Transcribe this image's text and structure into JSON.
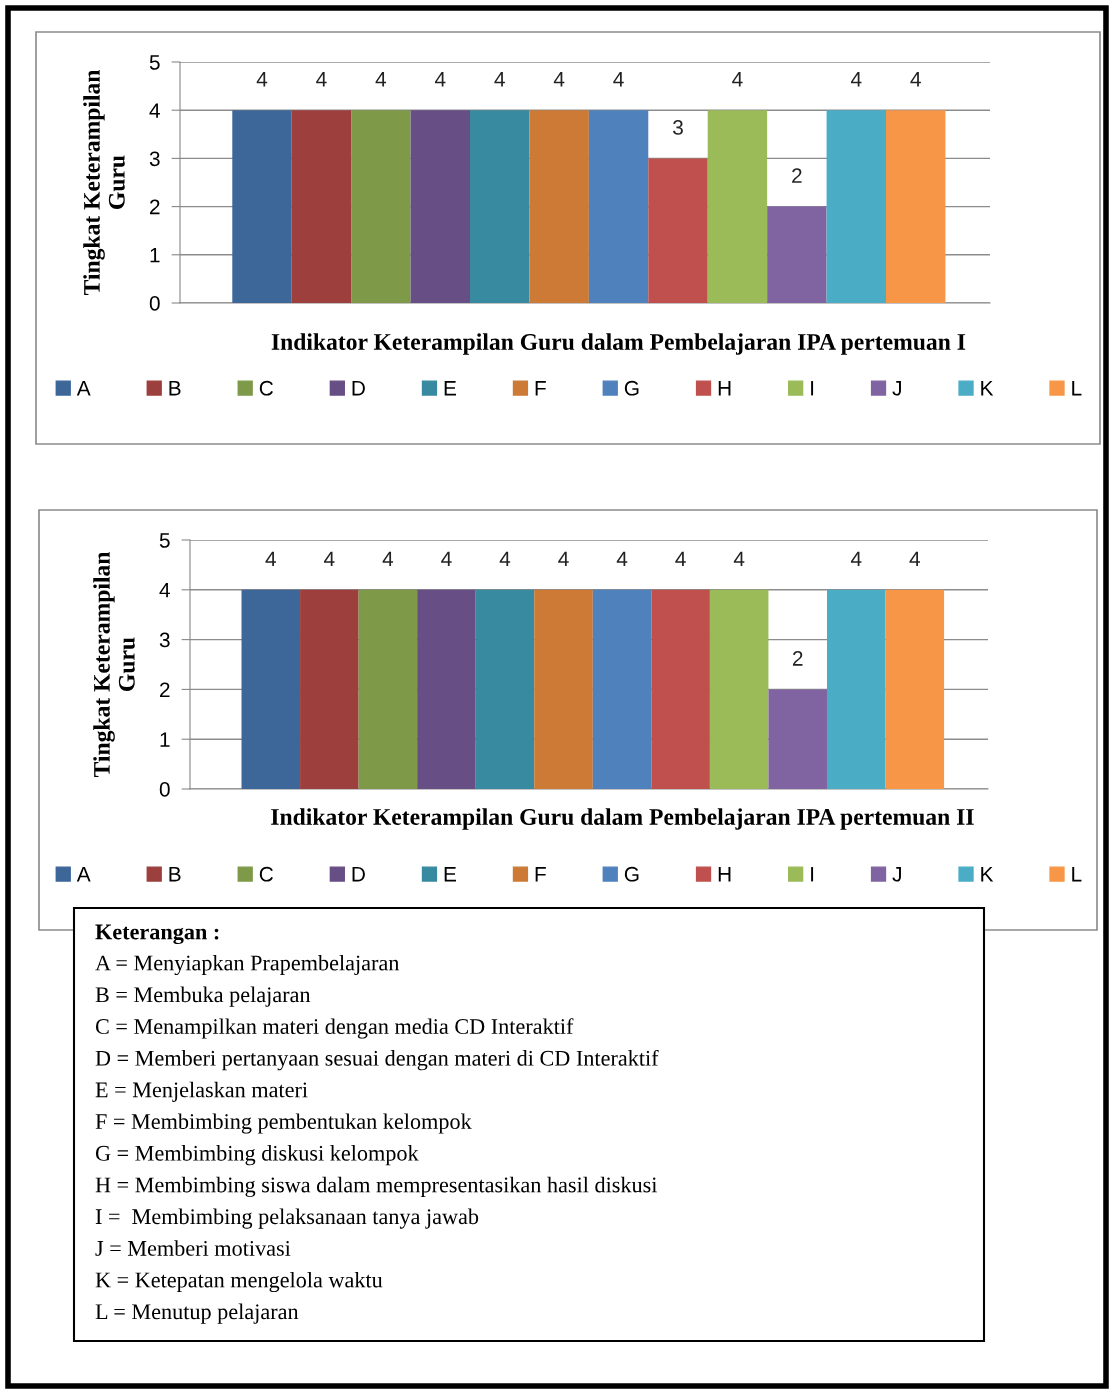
{
  "chart_data": [
    {
      "type": "bar",
      "categories": [
        null
      ],
      "xlabel": "Indikator Keterampilan Guru dalam Pembelajaran IPA pertemuan I",
      "ylabel": "Tingkat Keterampilan\nGuru",
      "ylim": [
        0,
        5
      ],
      "yticks": [
        0,
        1,
        2,
        3,
        4,
        5
      ],
      "grid": "y",
      "legend": "bottom",
      "data_labels": true,
      "series": [
        {
          "name": "A",
          "color": "#3d6699",
          "values": [
            4
          ]
        },
        {
          "name": "B",
          "color": "#9c3f3d",
          "values": [
            4
          ]
        },
        {
          "name": "C",
          "color": "#7e9a48",
          "values": [
            4
          ]
        },
        {
          "name": "D",
          "color": "#674e85",
          "values": [
            4
          ]
        },
        {
          "name": "E",
          "color": "#378a9f",
          "values": [
            4
          ]
        },
        {
          "name": "F",
          "color": "#cc7a35",
          "values": [
            4
          ]
        },
        {
          "name": "G",
          "color": "#4f81bd",
          "values": [
            4
          ]
        },
        {
          "name": "H",
          "color": "#c0504d",
          "values": [
            3
          ]
        },
        {
          "name": "I",
          "color": "#9bbb59",
          "values": [
            4
          ]
        },
        {
          "name": "J",
          "color": "#8064a2",
          "values": [
            2
          ]
        },
        {
          "name": "K",
          "color": "#4bacc6",
          "values": [
            4
          ]
        },
        {
          "name": "L",
          "color": "#f79646",
          "values": [
            4
          ]
        }
      ]
    },
    {
      "type": "bar",
      "categories": [
        null
      ],
      "xlabel": "Indikator Keterampilan Guru dalam Pembelajaran IPA pertemuan II",
      "ylabel": "Tingkat Keterampilan\nGuru",
      "ylim": [
        0,
        5
      ],
      "yticks": [
        0,
        1,
        2,
        3,
        4,
        5
      ],
      "grid": "y",
      "legend": "bottom",
      "data_labels": true,
      "series": [
        {
          "name": "A",
          "color": "#3d6699",
          "values": [
            4
          ]
        },
        {
          "name": "B",
          "color": "#9c3f3d",
          "values": [
            4
          ]
        },
        {
          "name": "C",
          "color": "#7e9a48",
          "values": [
            4
          ]
        },
        {
          "name": "D",
          "color": "#674e85",
          "values": [
            4
          ]
        },
        {
          "name": "E",
          "color": "#378a9f",
          "values": [
            4
          ]
        },
        {
          "name": "F",
          "color": "#cc7a35",
          "values": [
            4
          ]
        },
        {
          "name": "G",
          "color": "#4f81bd",
          "values": [
            4
          ]
        },
        {
          "name": "H",
          "color": "#c0504d",
          "values": [
            4
          ]
        },
        {
          "name": "I",
          "color": "#9bbb59",
          "values": [
            4
          ]
        },
        {
          "name": "J",
          "color": "#8064a2",
          "values": [
            2
          ]
        },
        {
          "name": "K",
          "color": "#4bacc6",
          "values": [
            4
          ]
        },
        {
          "name": "L",
          "color": "#f79646",
          "values": [
            4
          ]
        }
      ]
    },
    {
      "type": "other",
      "title": "Keterangan :",
      "annotations": [
        "A = Menyiapkan Prapembelajaran",
        "B = Membuka pelajaran",
        "C = Menampilkan materi dengan media CD Interaktif",
        "D = Memberi pertanyaan sesuai dengan materi di CD Interaktif",
        "E = Menjelaskan materi",
        "F = Membimbing pembentukan kelompok",
        "G = Membimbing diskusi kelompok",
        "H = Membimbing siswa dalam mempresentasikan hasil diskusi",
        "I =  Membimbing pelaksanaan tanya jawab",
        "J = Memberi motivasi",
        "K = Ketepatan mengelola waktu",
        "L = Menutup pelajaran"
      ]
    }
  ]
}
